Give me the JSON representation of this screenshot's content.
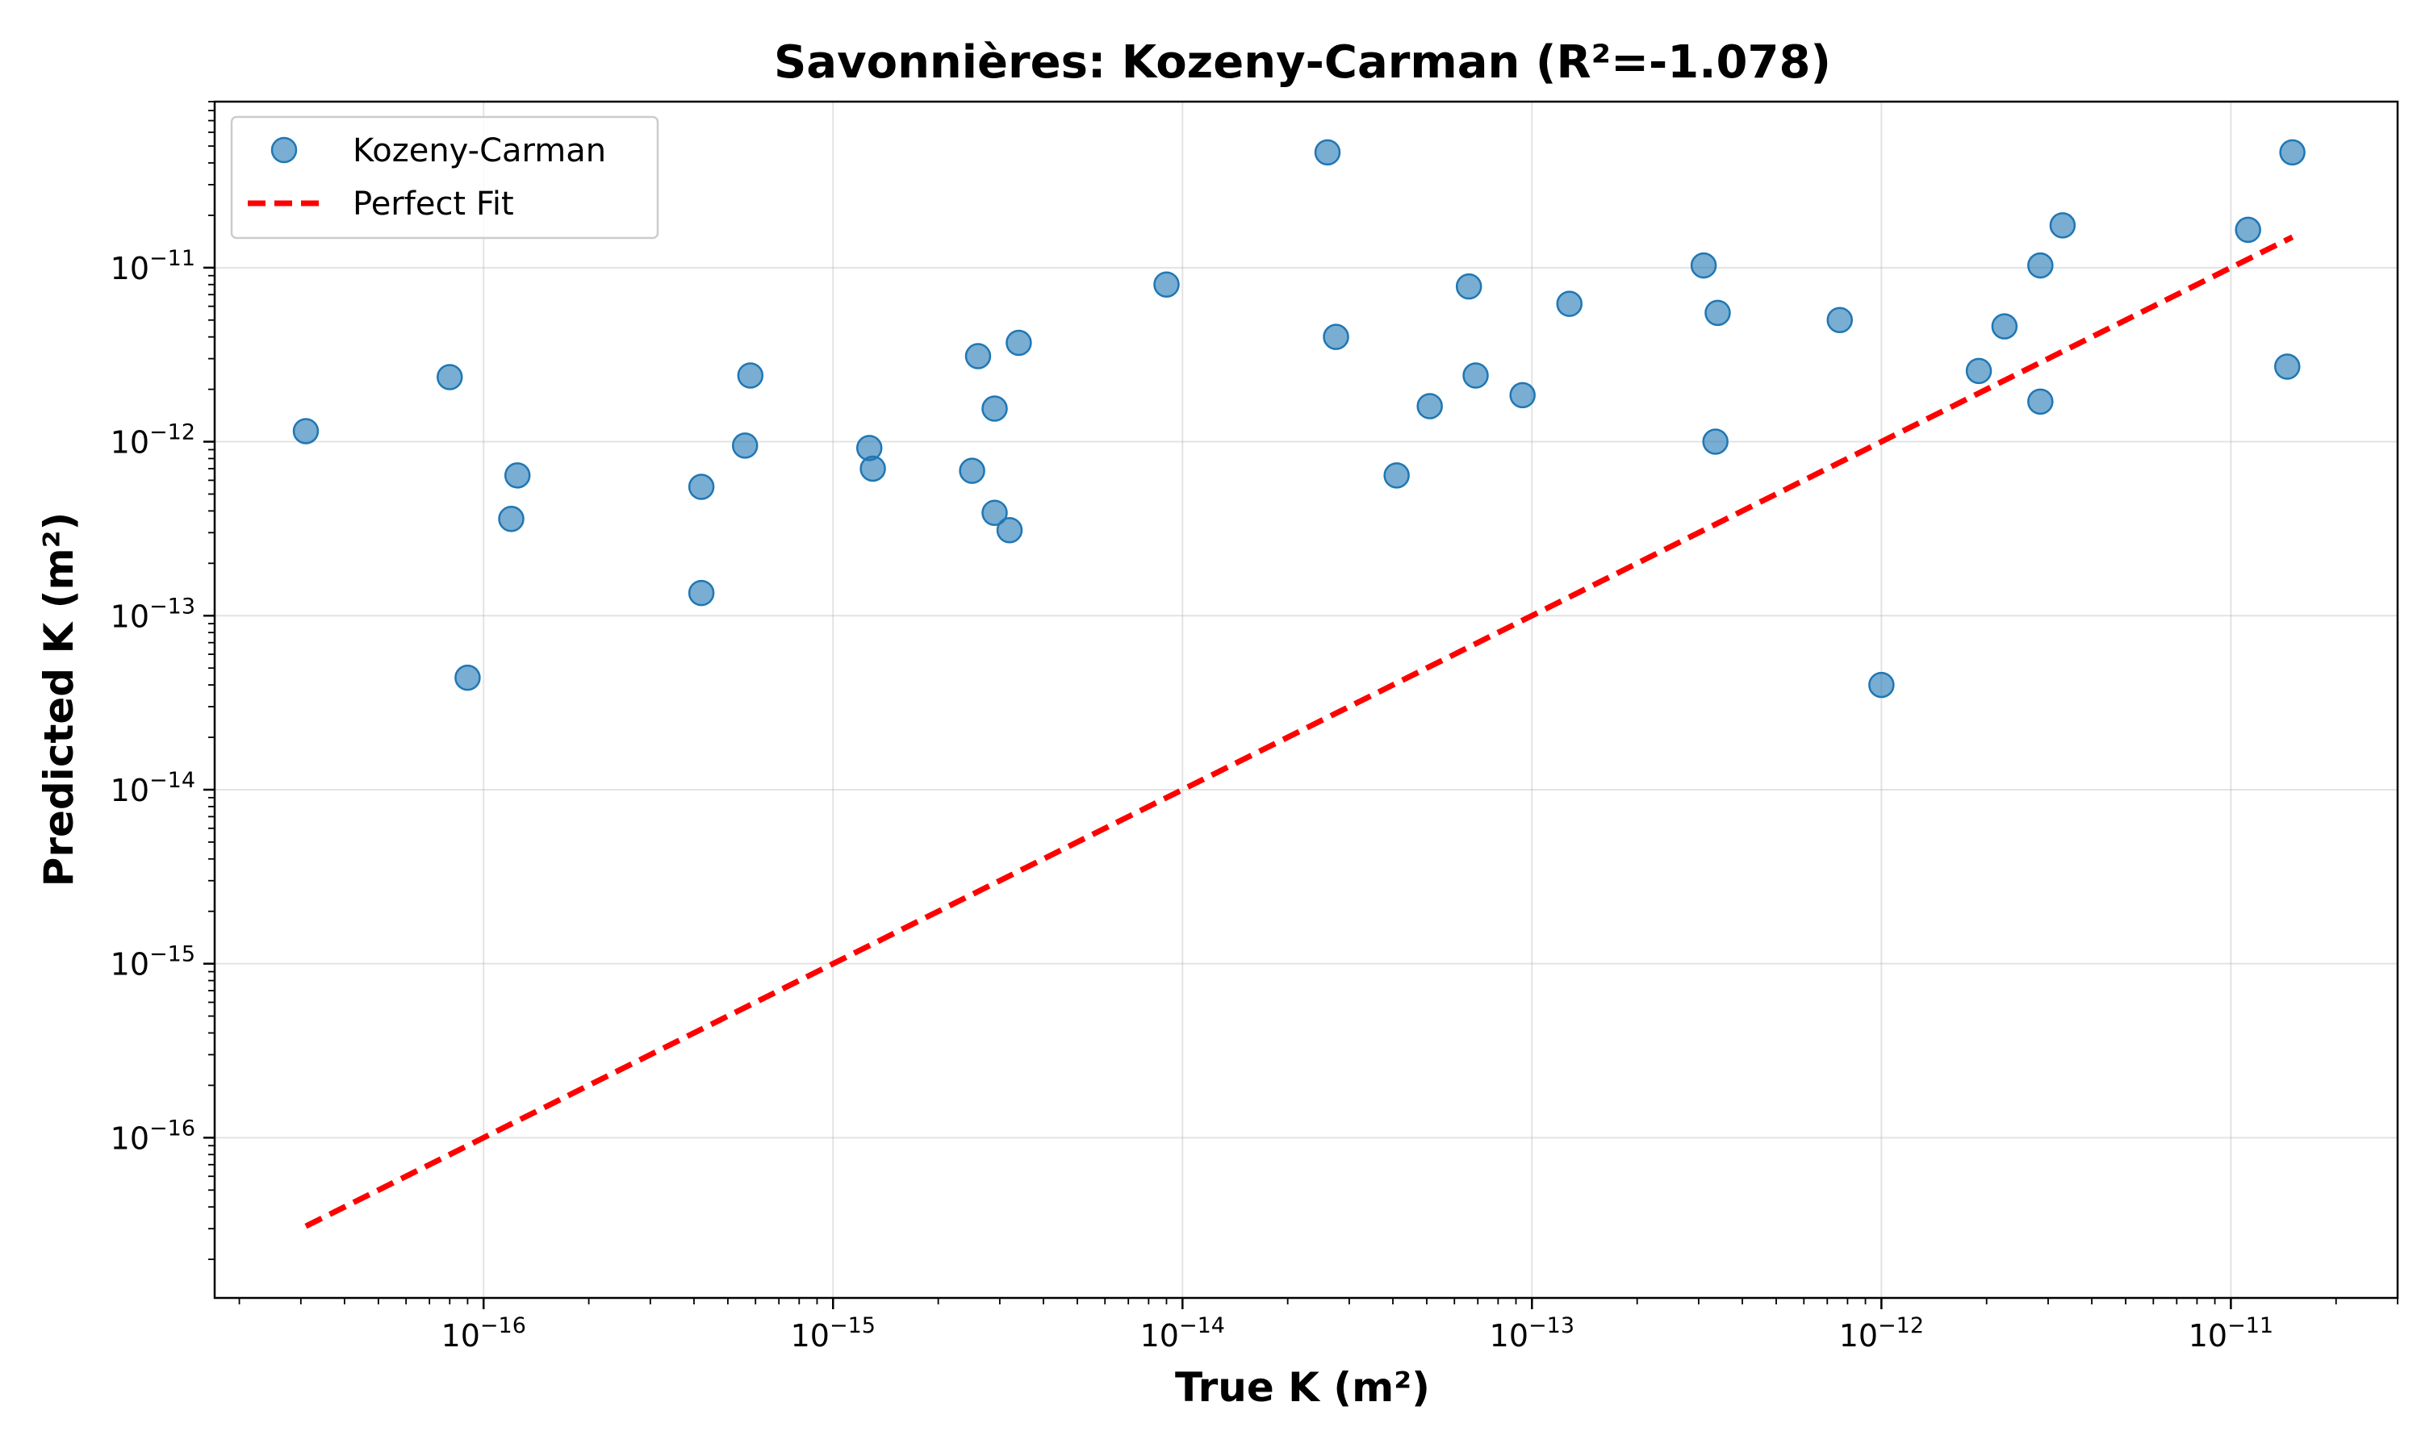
{
  "chart_data": {
    "type": "scatter",
    "title": "Savonnières: Kozeny-Carman (R²=-1.078)",
    "xlabel": "True K (m²)",
    "ylabel": "Predicted K (m²)",
    "xscale": "log",
    "yscale": "log",
    "xlim": [
      1.7e-17,
      3e-11
    ],
    "ylim": [
      1.2e-17,
      9e-11
    ],
    "x_ticks": [
      {
        "base": "10",
        "exp": "−16",
        "value": 1e-16
      },
      {
        "base": "10",
        "exp": "−15",
        "value": 1e-15
      },
      {
        "base": "10",
        "exp": "−14",
        "value": 1e-14
      },
      {
        "base": "10",
        "exp": "−13",
        "value": 1e-13
      },
      {
        "base": "10",
        "exp": "−12",
        "value": 1e-12
      },
      {
        "base": "10",
        "exp": "−11",
        "value": 1e-11
      }
    ],
    "y_ticks": [
      {
        "base": "10",
        "exp": "−16",
        "value": 1e-16
      },
      {
        "base": "10",
        "exp": "−15",
        "value": 1e-15
      },
      {
        "base": "10",
        "exp": "−14",
        "value": 1e-14
      },
      {
        "base": "10",
        "exp": "−13",
        "value": 1e-13
      },
      {
        "base": "10",
        "exp": "−12",
        "value": 1e-12
      },
      {
        "base": "10",
        "exp": "−11",
        "value": 1e-11
      }
    ],
    "grid": true,
    "legend_position": "top-left",
    "series": [
      {
        "name": "Kozeny-Carman",
        "kind": "scatter",
        "color": "#1f77b4",
        "points": [
          [
            3.1e-17,
            1.15e-12
          ],
          [
            8e-17,
            2.35e-12
          ],
          [
            9e-17,
            4.4e-14
          ],
          [
            1.2e-16,
            3.6e-13
          ],
          [
            1.25e-16,
            6.4e-13
          ],
          [
            4.2e-16,
            5.5e-13
          ],
          [
            4.2e-16,
            1.35e-13
          ],
          [
            5.6e-16,
            9.5e-13
          ],
          [
            5.8e-16,
            2.4e-12
          ],
          [
            1.27e-15,
            9.2e-13
          ],
          [
            1.3e-15,
            7e-13
          ],
          [
            2.5e-15,
            6.8e-13
          ],
          [
            2.6e-15,
            3.1e-12
          ],
          [
            2.9e-15,
            1.55e-12
          ],
          [
            2.9e-15,
            3.9e-13
          ],
          [
            3.2e-15,
            3.1e-13
          ],
          [
            3.4e-15,
            3.7e-12
          ],
          [
            9e-15,
            8e-12
          ],
          [
            2.6e-14,
            4.6e-11
          ],
          [
            2.75e-14,
            4e-12
          ],
          [
            4.1e-14,
            6.4e-13
          ],
          [
            5.1e-14,
            1.6e-12
          ],
          [
            6.6e-14,
            7.8e-12
          ],
          [
            6.9e-14,
            2.4e-12
          ],
          [
            9.4e-14,
            1.85e-12
          ],
          [
            1.28e-13,
            6.2e-12
          ],
          [
            3.1e-13,
            1.03e-11
          ],
          [
            3.35e-13,
            1e-12
          ],
          [
            3.4e-13,
            5.5e-12
          ],
          [
            7.6e-13,
            5e-12
          ],
          [
            1e-12,
            4e-14
          ],
          [
            1.9e-12,
            2.55e-12
          ],
          [
            2.25e-12,
            4.6e-12
          ],
          [
            2.85e-12,
            1.03e-11
          ],
          [
            2.85e-12,
            1.7e-12
          ],
          [
            3.3e-12,
            1.75e-11
          ],
          [
            1.12e-11,
            1.65e-11
          ],
          [
            1.45e-11,
            2.7e-12
          ],
          [
            1.5e-11,
            4.6e-11
          ]
        ]
      },
      {
        "name": "Perfect Fit",
        "kind": "line",
        "color": "#ff0000",
        "style": "dashed",
        "points": [
          [
            3.1e-17,
            3.1e-17
          ],
          [
            1.5e-11,
            1.5e-11
          ]
        ]
      }
    ]
  }
}
